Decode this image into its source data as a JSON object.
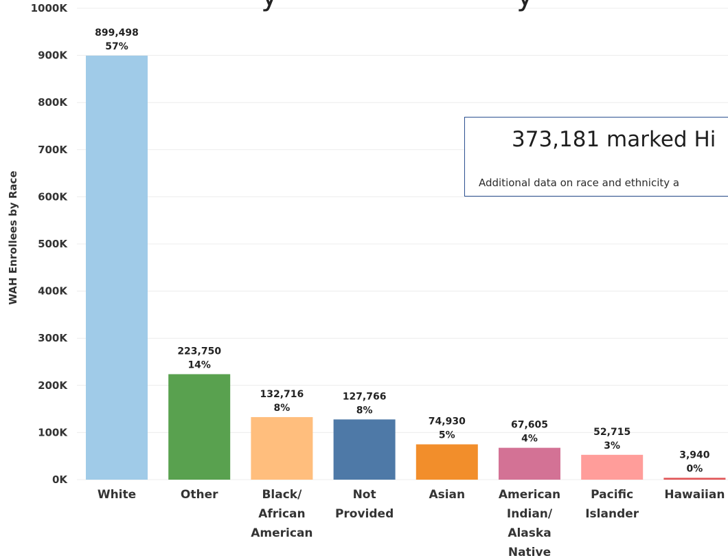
{
  "chart_data": {
    "type": "bar",
    "title_visible_fragment": "y                          y",
    "ylabel": "WAH Enrollees by Race",
    "xlabel": "",
    "ylim": [
      0,
      1000000
    ],
    "y_ticks": [
      {
        "value": 0,
        "label": "0K"
      },
      {
        "value": 100000,
        "label": "100K"
      },
      {
        "value": 200000,
        "label": "200K"
      },
      {
        "value": 300000,
        "label": "300K"
      },
      {
        "value": 400000,
        "label": "400K"
      },
      {
        "value": 500000,
        "label": "500K"
      },
      {
        "value": 600000,
        "label": "600K"
      },
      {
        "value": 700000,
        "label": "700K"
      },
      {
        "value": 800000,
        "label": "800K"
      },
      {
        "value": 900000,
        "label": "900K"
      },
      {
        "value": 1000000,
        "label": "1000K"
      }
    ],
    "grid": true,
    "categories": [
      {
        "lines": [
          "White"
        ]
      },
      {
        "lines": [
          "Other"
        ]
      },
      {
        "lines": [
          "Black/",
          "African",
          "American"
        ]
      },
      {
        "lines": [
          "Not",
          "Provided"
        ]
      },
      {
        "lines": [
          "Asian"
        ]
      },
      {
        "lines": [
          "American",
          "Indian/",
          "Alaska",
          "Native"
        ]
      },
      {
        "lines": [
          "Pacific",
          "Islander"
        ]
      },
      {
        "lines": [
          "Hawaiian"
        ]
      }
    ],
    "values": [
      899498,
      223750,
      132716,
      127766,
      74930,
      67605,
      52715,
      3940
    ],
    "value_labels": [
      "899,498",
      "223,750",
      "132,716",
      "127,766",
      "74,930",
      "67,605",
      "52,715",
      "3,940"
    ],
    "percent_labels": [
      "57%",
      "14%",
      "8%",
      "8%",
      "5%",
      "4%",
      "3%",
      "0%"
    ],
    "colors": [
      "#a0cbe8",
      "#59a14f",
      "#ffbe7d",
      "#4e79a7",
      "#f28e2b",
      "#d37295",
      "#ff9d9a",
      "#e15759"
    ]
  },
  "annotation": {
    "headline": "373,181 marked Hi",
    "note": "Additional data on race and ethnicity a",
    "border_color": "#2a4f8f"
  }
}
